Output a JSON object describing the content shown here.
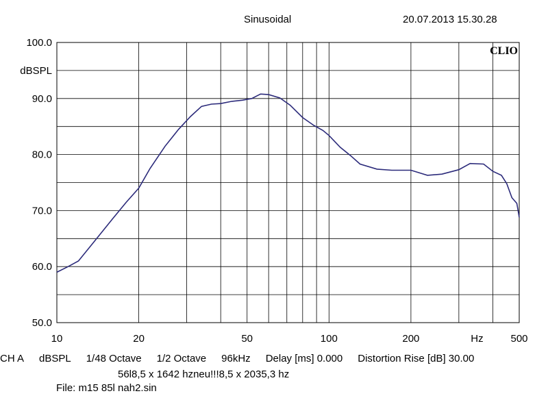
{
  "header": {
    "mode": "Sinusoidal",
    "datetime": "20.07.2013 15.30.28",
    "logo": "CLIO"
  },
  "info": {
    "line1": [
      "CH A",
      "dBSPL",
      "1/48 Octave",
      "1/2 Octave",
      "96kHz",
      "Delay [ms] 0.000",
      "Distortion Rise [dB] 30.00"
    ],
    "line2": "56l8,5 x 1642 hzneu!!!8,5 x 2035,3 hz",
    "line3": "File: m15 85l nah2.sin"
  },
  "colors": {
    "curve": "#2b2a7a",
    "grid": "#000000"
  },
  "chart_data": {
    "type": "line",
    "xscale": "log",
    "xlim": [
      10,
      500
    ],
    "ylim": [
      50,
      100
    ],
    "ylabel": "dBSPL",
    "xunit": "Hz",
    "y_ticks": [
      "100.0",
      "90.0",
      "80.0",
      "70.0",
      "60.0",
      "50.0"
    ],
    "x_ticks": [
      {
        "value": 10,
        "label": "10"
      },
      {
        "value": 20,
        "label": "20"
      },
      {
        "value": 50,
        "label": "50"
      },
      {
        "value": 100,
        "label": "100"
      },
      {
        "value": 200,
        "label": "200"
      },
      {
        "value": 350,
        "label": "Hz"
      },
      {
        "value": 500,
        "label": "500"
      }
    ],
    "grid": true,
    "series": [
      {
        "x": [
          10,
          11,
          12,
          14,
          16,
          18,
          20,
          22,
          25,
          28,
          31,
          34,
          37,
          40,
          44,
          48,
          52,
          56,
          60,
          66,
          72,
          80,
          88,
          95,
          100,
          110,
          120,
          130,
          150,
          170,
          200,
          230,
          260,
          300,
          330,
          370,
          400,
          430,
          450,
          470,
          490,
          500
        ],
        "y": [
          59.0,
          60.0,
          61.0,
          65.0,
          68.5,
          71.5,
          74.0,
          77.5,
          81.5,
          84.5,
          86.8,
          88.6,
          89.0,
          89.1,
          89.5,
          89.7,
          90.0,
          90.8,
          90.7,
          90.1,
          88.8,
          86.6,
          85.2,
          84.3,
          83.4,
          81.3,
          79.8,
          78.3,
          77.4,
          77.2,
          77.2,
          76.3,
          76.5,
          77.3,
          78.4,
          78.3,
          77.0,
          76.3,
          74.8,
          72.3,
          71.3,
          68.8
        ]
      }
    ]
  }
}
